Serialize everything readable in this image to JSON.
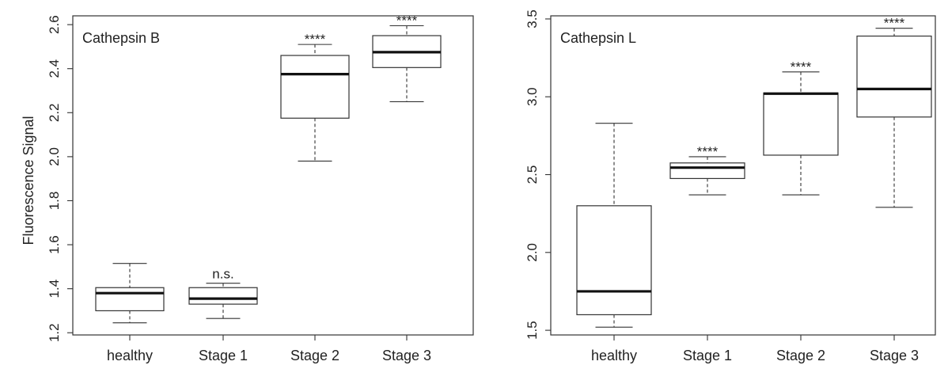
{
  "ylabel": "Fluorescence Signal",
  "chart_data": [
    {
      "type": "box",
      "title": "Cathepsin B",
      "ylabel": "Fluorescence Signal",
      "ylim": [
        1.19,
        2.64
      ],
      "yticks": [
        1.2,
        1.4,
        1.6,
        1.8,
        2.0,
        2.2,
        2.4,
        2.6
      ],
      "ytick_labels": [
        "1.2",
        "1.4",
        "1.6",
        "1.8",
        "2.0",
        "2.2",
        "2.4",
        "2.6"
      ],
      "categories": [
        "healthy",
        "Stage 1",
        "Stage 2",
        "Stage 3"
      ],
      "boxes": [
        {
          "category": "healthy",
          "whisker_low": 1.245,
          "q1": 1.3,
          "median": 1.38,
          "q3": 1.405,
          "whisker_high": 1.515,
          "sig": ""
        },
        {
          "category": "Stage 1",
          "whisker_low": 1.265,
          "q1": 1.33,
          "median": 1.355,
          "q3": 1.405,
          "whisker_high": 1.425,
          "sig": "n.s."
        },
        {
          "category": "Stage 2",
          "whisker_low": 1.98,
          "q1": 2.175,
          "median": 2.375,
          "q3": 2.46,
          "whisker_high": 2.51,
          "sig": "****"
        },
        {
          "category": "Stage 3",
          "whisker_low": 2.25,
          "q1": 2.405,
          "median": 2.475,
          "q3": 2.55,
          "whisker_high": 2.595,
          "sig": "****"
        }
      ]
    },
    {
      "type": "box",
      "title": "Cathepsin L",
      "ylabel": "",
      "ylim": [
        1.47,
        3.52
      ],
      "yticks": [
        1.5,
        2.0,
        2.5,
        3.0,
        3.5
      ],
      "ytick_labels": [
        "1.5",
        "2.0",
        "2.5",
        "3.0",
        "3.5"
      ],
      "categories": [
        "healthy",
        "Stage 1",
        "Stage 2",
        "Stage 3"
      ],
      "boxes": [
        {
          "category": "healthy",
          "whisker_low": 1.52,
          "q1": 1.6,
          "median": 1.75,
          "q3": 2.3,
          "whisker_high": 2.83,
          "sig": ""
        },
        {
          "category": "Stage 1",
          "whisker_low": 2.37,
          "q1": 2.475,
          "median": 2.545,
          "q3": 2.575,
          "whisker_high": 2.615,
          "sig": "****"
        },
        {
          "category": "Stage 2",
          "whisker_low": 2.37,
          "q1": 2.625,
          "median": 3.02,
          "q3": 3.025,
          "whisker_high": 3.16,
          "sig": "****"
        },
        {
          "category": "Stage 3",
          "whisker_low": 2.29,
          "q1": 2.87,
          "median": 3.05,
          "q3": 3.39,
          "whisker_high": 3.44,
          "sig": "****"
        }
      ]
    }
  ]
}
